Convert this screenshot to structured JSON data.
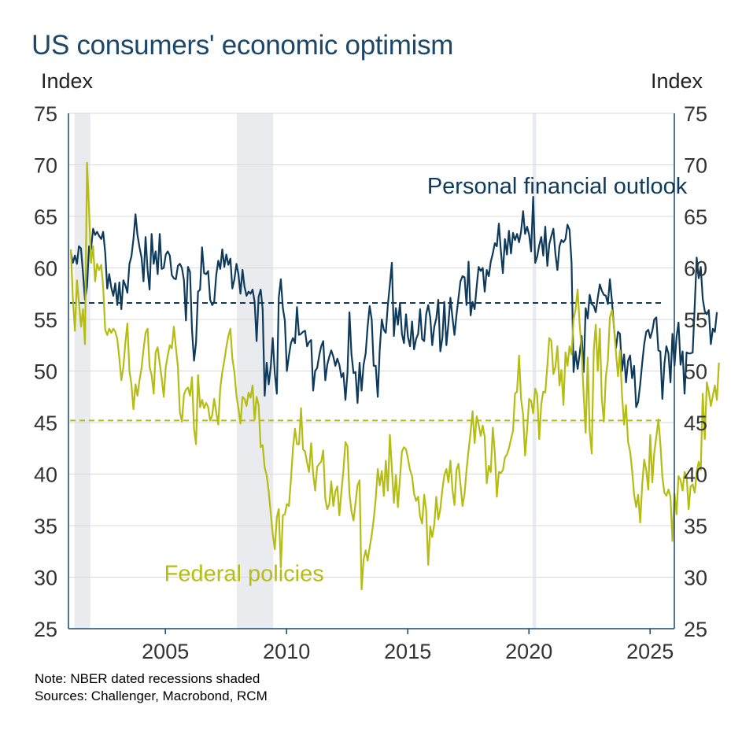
{
  "title": "US consumers' economic optimism",
  "left_unit": "Index",
  "right_unit": "Index",
  "notes": {
    "note": "Note: NBER dated recessions shaded",
    "sources": "Sources: Challenger, Macrobond, RCM"
  },
  "colors": {
    "personal": "#0e3a5c",
    "federal": "#b5bd12",
    "recession": "#e9ebee",
    "grid": "#d9d9d9",
    "axis": "#1d4769",
    "title": "#1d4769"
  },
  "chart_data": {
    "type": "line",
    "xlim": [
      2001.0,
      2026.0
    ],
    "ylim": [
      25,
      75
    ],
    "yticks": [
      25,
      30,
      35,
      40,
      45,
      50,
      55,
      60,
      65,
      70,
      75
    ],
    "xticks": [
      2005,
      2010,
      2015,
      2020,
      2025
    ],
    "recessions": [
      [
        2001.25,
        2001.9
      ],
      [
        2007.95,
        2009.45
      ],
      [
        2020.15,
        2020.3
      ]
    ],
    "series": [
      {
        "name": "Personal financial outlook",
        "key": "personal",
        "label_at": [
          2015.8,
          67.2
        ],
        "average": 56.6,
        "x_start": 2001.1,
        "x_step": 0.0833,
        "values": [
          61.5,
          60.5,
          61.2,
          60.4,
          62.1,
          61.9,
          59.5,
          56.9,
          58.2,
          62.1,
          61.8,
          63.8,
          63.2,
          63.5,
          63.1,
          62.8,
          63.5,
          61.5,
          58.0,
          59.4,
          58.1,
          57.3,
          58.5,
          56.4,
          58.6,
          56.0,
          58.8,
          58.3,
          57.6,
          60.4,
          61.1,
          62.8,
          65.2,
          63.2,
          62.0,
          61.0,
          58.7,
          63.0,
          59.8,
          57.9,
          63.3,
          60.4,
          61.6,
          59.4,
          63.3,
          59.9,
          60.0,
          61.3,
          61.6,
          61.2,
          59.3,
          59.0,
          58.9,
          60.2,
          60.4,
          60.0,
          58.8,
          54.9,
          60.1,
          59.6,
          54.0,
          51.0,
          52.7,
          57.7,
          57.9,
          62.0,
          59.5,
          59.4,
          59.7,
          56.9,
          56.4,
          56.7,
          59.3,
          60.7,
          59.9,
          61.8,
          60.1,
          61.3,
          60.3,
          60.9,
          58.0,
          58.9,
          60.4,
          59.4,
          57.5,
          59.8,
          58.2,
          57.3,
          57.7,
          57.5,
          57.9,
          56.7,
          52.9,
          57.2,
          57.9,
          56.0,
          47.6,
          50.8,
          48.7,
          50.4,
          53.2,
          49.8,
          47.8,
          57.1,
          58.9,
          56.1,
          54.9,
          50.0,
          51.5,
          52.7,
          53.2,
          52.7,
          56.2,
          53.5,
          53.6,
          53.8,
          53.9,
          52.4,
          52.8,
          53.0,
          48.1,
          50.0,
          50.3,
          51.5,
          52.4,
          52.9,
          49.1,
          50.6,
          51.4,
          52.0,
          51.4,
          50.5,
          51.2,
          50.6,
          49.4,
          49.8,
          47.2,
          49.8,
          55.7,
          51.6,
          49.8,
          49.9,
          46.9,
          50.8,
          48.1,
          50.6,
          51.7,
          54.3,
          56.3,
          55.0,
          50.5,
          50.5,
          47.5,
          52.1,
          55.0,
          54.0,
          53.7,
          56.4,
          58.4,
          60.5,
          53.4,
          56.1,
          54.5,
          56.6,
          53.6,
          52.7,
          55.5,
          53.3,
          52.4,
          54.8,
          52.1,
          53.1,
          53.6,
          56.0,
          53.1,
          52.9,
          55.5,
          56.4,
          55.2,
          52.5,
          54.3,
          55.1,
          56.9,
          51.9,
          53.2,
          56.7,
          52.5,
          54.6,
          57.1,
          55.2,
          53.5,
          55.4,
          57.1,
          58.7,
          59.2,
          59.1,
          56.4,
          60.6,
          55.4,
          56.7,
          56.0,
          58.2,
          60.1,
          59.7,
          60.0,
          57.7,
          59.8,
          59.2,
          60.6,
          61.4,
          62.4,
          62.1,
          64.3,
          61.6,
          59.5,
          62.8,
          61.3,
          63.6,
          61.4,
          63.4,
          62.7,
          63.3,
          62.5,
          63.5,
          65.5,
          63.3,
          64.0,
          63.2,
          61.6,
          66.9,
          60.5,
          61.1,
          62.2,
          63.0,
          61.2,
          64.0,
          60.2,
          62.3,
          63.1,
          63.8,
          61.4,
          59.8,
          62.1,
          62.7,
          62.5,
          62.8,
          64.2,
          63.7,
          60.5,
          49.9,
          51.9,
          50.2,
          51.6,
          53.4,
          49.9,
          56.1,
          55.1,
          57.4,
          56.5,
          56.3,
          55.7,
          57.1,
          58.4,
          57.8,
          57.4,
          57.3,
          56.5,
          58.9,
          56.8,
          54.3,
          52.2,
          53.8,
          53.6,
          50.0,
          51.6,
          48.9,
          51.0,
          51.5,
          49.3,
          50.5,
          46.5,
          47.0,
          48.7,
          50.8,
          52.6,
          53.8,
          54.0,
          53.2,
          53.9,
          55.0,
          55.2,
          52.0,
          51.9,
          47.3,
          50.7,
          52.4,
          51.7,
          48.9,
          53.6,
          50.5,
          53.3,
          54.7,
          50.6,
          51.9,
          47.8,
          51.8,
          51.7,
          51.7,
          51.8,
          56.3,
          61.0,
          59.0,
          60.1,
          57.0,
          55.8,
          55.5,
          55.9,
          52.6,
          54.1,
          53.8,
          55.7
        ]
      },
      {
        "name": "Federal policies",
        "key": "federal",
        "label_at": [
          2004.95,
          29.6
        ],
        "average": 45.2,
        "x_start": 2001.1,
        "x_step": 0.0833,
        "values": [
          61.8,
          57.0,
          53.9,
          58.8,
          56.7,
          54.3,
          56.0,
          52.6,
          70.2,
          65.5,
          60.5,
          62.1,
          58.7,
          60.4,
          59.8,
          60.3,
          58.2,
          54.0,
          53.5,
          54.1,
          53.7,
          54.1,
          53.8,
          53.1,
          51.2,
          49.1,
          50.4,
          52.8,
          54.6,
          50.0,
          48.7,
          46.3,
          48.7,
          47.6,
          49.1,
          50.3,
          52.1,
          53.7,
          54.1,
          50.4,
          49.6,
          47.8,
          51.8,
          52.3,
          50.7,
          49.3,
          47.5,
          50.4,
          51.5,
          52.5,
          52.2,
          54.3,
          52.3,
          50.4,
          46.0,
          45.1,
          47.7,
          48.2,
          48.4,
          47.6,
          49.4,
          44.4,
          42.9,
          49.6,
          46.5,
          47.2,
          46.4,
          46.9,
          46.5,
          45.2,
          45.7,
          47.3,
          46.0,
          44.8,
          48.3,
          49.9,
          51.0,
          52.3,
          53.4,
          54.1,
          51.2,
          49.9,
          47.6,
          46.4,
          44.9,
          47.5,
          47.3,
          46.6,
          47.9,
          47.4,
          48.6,
          45.3,
          47.5,
          46.7,
          42.6,
          42.8,
          40.6,
          39.9,
          38.3,
          36.2,
          34.2,
          32.7,
          35.8,
          36.6,
          30.9,
          36.0,
          36.1,
          37.1,
          36.9,
          39.4,
          42.5,
          44.4,
          42.9,
          42.9,
          46.4,
          42.4,
          42.2,
          41.1,
          40.2,
          43.0,
          40.0,
          38.4,
          40.7,
          41.0,
          41.2,
          42.3,
          37.6,
          36.6,
          37.1,
          39.3,
          36.9,
          38.3,
          38.8,
          36.0,
          38.3,
          40.3,
          43.1,
          42.7,
          38.1,
          36.4,
          35.5,
          37.2,
          38.9,
          39.4,
          28.8,
          31.7,
          32.6,
          31.6,
          32.9,
          34.1,
          35.6,
          37.6,
          40.5,
          38.9,
          40.3,
          37.9,
          41.3,
          38.4,
          43.8,
          40.6,
          37.2,
          39.9,
          36.8,
          39.6,
          42.2,
          42.6,
          42.4,
          41.5,
          40.4,
          39.8,
          38.1,
          37.4,
          37.8,
          35.9,
          35.2,
          38.0,
          36.5,
          31.2,
          34.9,
          33.9,
          35.1,
          37.8,
          35.6,
          36.6,
          38.5,
          39.9,
          40.5,
          39.2,
          41.3,
          38.5,
          37.0,
          40.4,
          41.0,
          39.0,
          36.9,
          38.1,
          40.4,
          42.3,
          44.1,
          46.1,
          43.0,
          45.6,
          44.8,
          43.7,
          44.7,
          43.6,
          39.1,
          40.8,
          40.2,
          44.5,
          42.0,
          37.8,
          40.2,
          40.1,
          40.4,
          41.6,
          41.9,
          42.5,
          43.4,
          44.2,
          47.8,
          48.0,
          51.5,
          47.3,
          45.8,
          41.8,
          44.3,
          47.3,
          47.1,
          45.9,
          48.3,
          47.7,
          43.4,
          46.8,
          48.0,
          47.9,
          50.5,
          53.2,
          52.9,
          49.7,
          50.4,
          52.4,
          48.6,
          50.1,
          46.7,
          51.8,
          50.5,
          52.4,
          51.6,
          55.0,
          56.0,
          57.9,
          54.6,
          52.0,
          47.6,
          44.0,
          51.3,
          44.2,
          42.0,
          52.0,
          54.5,
          50.0,
          54.1,
          47.3,
          45.1,
          49.5,
          51.0,
          55.2,
          55.9,
          54.4,
          51.8,
          49.5,
          52.0,
          47.7,
          44.8,
          46.7,
          43.1,
          42.2,
          40.4,
          38.0,
          36.8,
          38.0,
          35.3,
          39.0,
          41.4,
          40.4,
          38.5,
          43.8,
          39.2,
          42.1,
          43.6,
          45.3,
          43.0,
          39.7,
          38.2,
          37.9,
          38.5,
          37.8,
          33.5,
          38.1,
          36.1,
          39.8,
          39.4,
          38.4,
          40.2,
          39.8,
          36.6,
          38.8,
          39.0,
          38.2,
          40.2,
          41.2,
          40.4,
          47.8,
          43.4,
          48.9,
          48.0,
          46.6,
          47.6,
          48.6,
          47.2,
          50.8
        ]
      }
    ]
  }
}
